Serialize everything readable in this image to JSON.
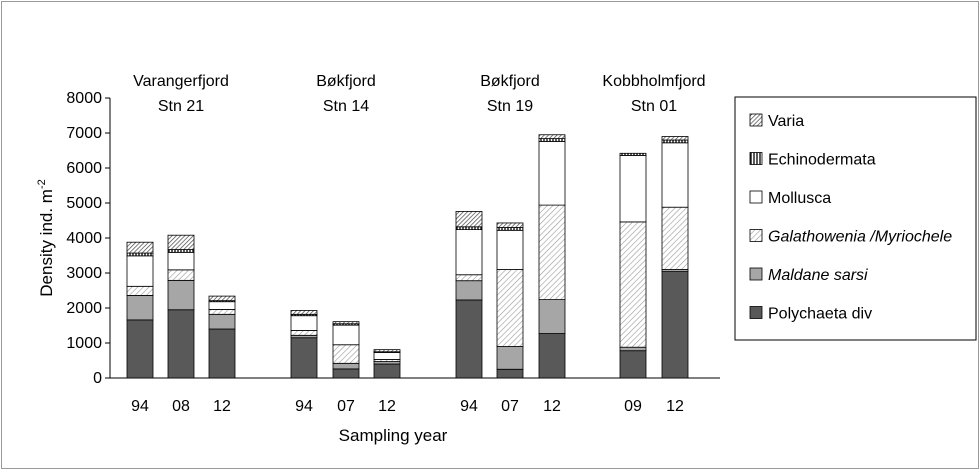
{
  "chart_data": {
    "type": "bar",
    "stacked": true,
    "xlabel": "Sampling year",
    "ylabel_main": "Density ind. m",
    "ylabel_sup": "-2",
    "ylim": [
      0,
      8000
    ],
    "yticks": [
      0,
      1000,
      2000,
      3000,
      4000,
      5000,
      6000,
      7000,
      8000
    ],
    "grid": false,
    "legend_position": "right",
    "groups": [
      {
        "name": "Varangerfjord",
        "station": "Stn 21",
        "years": [
          "94",
          "08",
          "12"
        ]
      },
      {
        "name": "Bøkfjord",
        "station": "Stn 14",
        "years": [
          "94",
          "07",
          "12"
        ]
      },
      {
        "name": "Bøkfjord",
        "station": "Stn 19",
        "years": [
          "94",
          "07",
          "12"
        ]
      },
      {
        "name": "Kobbholmfjord",
        "station": "Stn 01",
        "years": [
          "09",
          "12"
        ]
      }
    ],
    "series": [
      {
        "name": "Polychaeta div",
        "italic": false,
        "pattern": "dark",
        "color": "#595959",
        "values": [
          1660,
          1950,
          1400,
          1150,
          260,
          400,
          2230,
          250,
          1270,
          780,
          3040
        ]
      },
      {
        "name": "Maldane sarsi",
        "italic": true,
        "pattern": "gray",
        "color": "#a6a6a6",
        "values": [
          700,
          840,
          420,
          70,
          160,
          70,
          550,
          650,
          970,
          100,
          60
        ]
      },
      {
        "name": "Galathowenia /Myriochele",
        "italic": true,
        "pattern": "light-hatch",
        "color": "#f2f2f2",
        "values": [
          260,
          300,
          140,
          140,
          530,
          60,
          170,
          2200,
          2700,
          3580,
          1780
        ]
      },
      {
        "name": "Mollusca",
        "italic": false,
        "pattern": "white",
        "color": "#ffffff",
        "values": [
          870,
          500,
          220,
          420,
          560,
          200,
          1290,
          1120,
          1820,
          1900,
          1840
        ]
      },
      {
        "name": "Echinodermata",
        "italic": false,
        "pattern": "vertical",
        "color": "#000000",
        "values": [
          80,
          80,
          30,
          40,
          40,
          20,
          80,
          80,
          80,
          60,
          80
        ]
      },
      {
        "name": "Varia",
        "italic": false,
        "pattern": "dense-hatch",
        "color": "#7f7f7f",
        "values": [
          310,
          410,
          130,
          110,
          60,
          60,
          440,
          130,
          110,
          0,
          100
        ]
      }
    ]
  }
}
